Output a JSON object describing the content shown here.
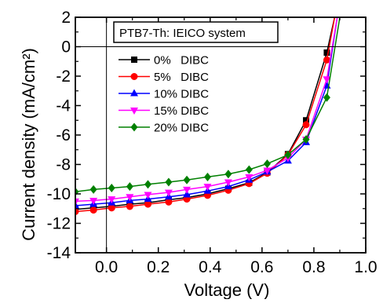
{
  "chart_data": {
    "type": "line",
    "title": "",
    "annotation": "PTB7-Th: IEICO system",
    "xlabel": "Voltage (V)",
    "ylabel": "Current density (mA/cm²)",
    "xlim": [
      -0.12,
      1.0
    ],
    "ylim": [
      -14,
      2
    ],
    "xticks": [
      "0.0",
      "0.2",
      "0.4",
      "0.6",
      "0.8",
      "1.0"
    ],
    "yticks": [
      "2",
      "0",
      "-2",
      "-4",
      "-6",
      "-8",
      "-10",
      "-12",
      "-14"
    ],
    "legend_position": "top-left",
    "grid": false,
    "series": [
      {
        "name": "0%   DIBC",
        "color": "#000000",
        "marker": "square",
        "x": [
          -0.12,
          -0.05,
          0.02,
          0.09,
          0.16,
          0.24,
          0.31,
          0.39,
          0.47,
          0.55,
          0.62,
          0.7,
          0.77,
          0.85,
          0.88
        ],
        "y": [
          -11.05,
          -10.95,
          -10.85,
          -10.7,
          -10.6,
          -10.4,
          -10.25,
          -10.0,
          -9.65,
          -9.25,
          -8.55,
          -7.3,
          -5.0,
          -0.4,
          2.0
        ]
      },
      {
        "name": "5%   DIBC",
        "color": "#ff0000",
        "marker": "circle",
        "x": [
          -0.12,
          -0.05,
          0.02,
          0.09,
          0.16,
          0.24,
          0.31,
          0.39,
          0.47,
          0.55,
          0.62,
          0.7,
          0.77,
          0.85,
          0.88
        ],
        "y": [
          -11.2,
          -11.1,
          -10.95,
          -10.85,
          -10.7,
          -10.55,
          -10.35,
          -10.1,
          -9.75,
          -9.3,
          -8.6,
          -7.35,
          -5.3,
          -0.9,
          2.0
        ]
      },
      {
        "name": "10% DIBC",
        "color": "#0000ff",
        "marker": "triangle-up",
        "x": [
          -0.12,
          -0.05,
          0.02,
          0.09,
          0.16,
          0.24,
          0.31,
          0.39,
          0.47,
          0.55,
          0.62,
          0.7,
          0.77,
          0.85,
          0.89
        ],
        "y": [
          -10.8,
          -10.7,
          -10.6,
          -10.45,
          -10.35,
          -10.2,
          -10.05,
          -9.8,
          -9.5,
          -9.05,
          -8.5,
          -7.75,
          -6.5,
          -2.65,
          2.0
        ]
      },
      {
        "name": "15% DIBC",
        "color": "#ff00ff",
        "marker": "triangle-down",
        "x": [
          -0.12,
          -0.05,
          0.02,
          0.09,
          0.16,
          0.24,
          0.31,
          0.39,
          0.47,
          0.55,
          0.62,
          0.7,
          0.77,
          0.85,
          0.89
        ],
        "y": [
          -10.5,
          -10.45,
          -10.35,
          -10.2,
          -10.05,
          -9.9,
          -9.7,
          -9.5,
          -9.2,
          -8.85,
          -8.4,
          -7.55,
          -6.3,
          -2.2,
          2.0
        ]
      },
      {
        "name": "20% DIBC",
        "color": "#008000",
        "marker": "diamond",
        "x": [
          -0.12,
          -0.05,
          0.02,
          0.09,
          0.16,
          0.24,
          0.31,
          0.39,
          0.47,
          0.55,
          0.62,
          0.7,
          0.77,
          0.85,
          0.9
        ],
        "y": [
          -9.85,
          -9.7,
          -9.6,
          -9.5,
          -9.35,
          -9.2,
          -9.05,
          -8.85,
          -8.65,
          -8.35,
          -7.95,
          -7.35,
          -6.3,
          -3.45,
          2.0
        ]
      }
    ]
  }
}
